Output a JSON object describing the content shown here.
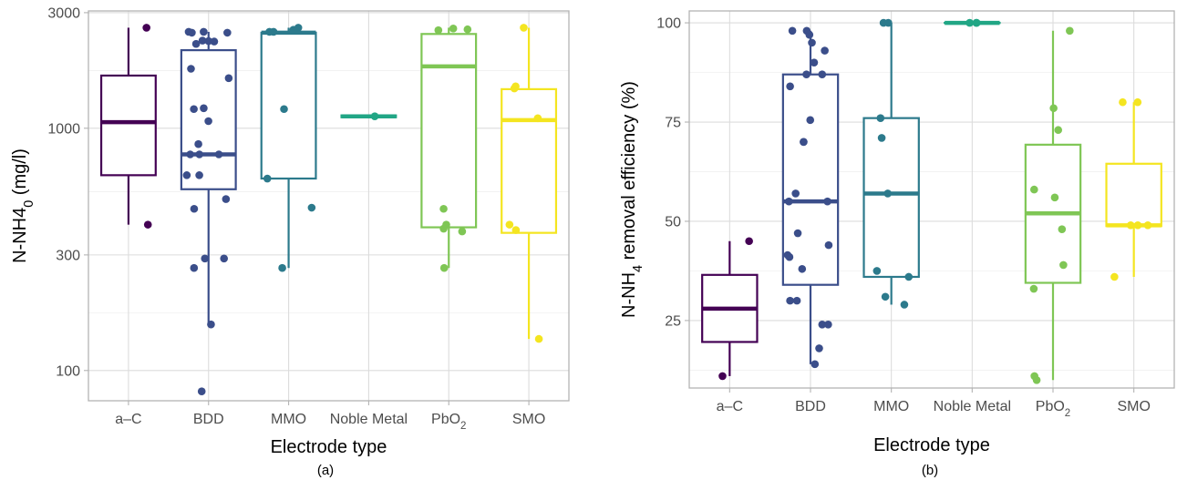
{
  "chart_data": [
    {
      "type": "box",
      "panel_label": "(a)",
      "xlabel": "Electrode type",
      "ylabel": "N-NH4₀ (mg/l)",
      "y_scale": "log",
      "ylim": [
        75,
        3050
      ],
      "yticks": [
        100,
        300,
        1000,
        3000
      ],
      "ytick_labels": [
        "100",
        "300",
        "1000",
        "3000"
      ],
      "categories": [
        "a–C",
        "BDD",
        "MMO",
        "Noble Metal",
        "PbO₂",
        "SMO"
      ],
      "colors": [
        "#440154",
        "#3b4e8a",
        "#2c7a8c",
        "#21a685",
        "#7fc655",
        "#f4e520"
      ],
      "boxes": [
        {
          "category": "a–C",
          "q1": 640,
          "median": 1060,
          "q3": 1650,
          "whisker_low": 400,
          "whisker_high": 2600
        },
        {
          "category": "BDD",
          "q1": 560,
          "median": 780,
          "q3": 2100,
          "whisker_low": 155,
          "whisker_high": 2500
        },
        {
          "category": "MMO",
          "q1": 620,
          "median": 2480,
          "q3": 2480,
          "whisker_low": 265,
          "whisker_high": 2600
        },
        {
          "category": "Noble Metal",
          "q1": 1110,
          "median": 1120,
          "q3": 1130,
          "whisker_low": 1110,
          "whisker_high": 1130
        },
        {
          "category": "PbO₂",
          "q1": 390,
          "median": 1800,
          "q3": 2450,
          "whisker_low": 265,
          "whisker_high": 2600
        },
        {
          "category": "SMO",
          "q1": 370,
          "median": 1080,
          "q3": 1450,
          "whisker_low": 135,
          "whisker_high": 2600
        }
      ],
      "points": [
        {
          "category": "a–C",
          "values": [
            2600,
            400
          ]
        },
        {
          "category": "BDD",
          "values": [
            2500,
            2500,
            2480,
            2480,
            2300,
            2290,
            2280,
            2230,
            1760,
            1610,
            1210,
            1200,
            1070,
            860,
            780,
            780,
            780,
            640,
            640,
            510,
            465,
            290,
            290,
            265,
            155,
            82
          ]
        },
        {
          "category": "MMO",
          "values": [
            2600,
            2550,
            2500,
            2500,
            1200,
            620,
            470,
            265
          ]
        },
        {
          "category": "Noble Metal",
          "values": [
            1120
          ]
        },
        {
          "category": "PbO₂",
          "values": [
            2580,
            2560,
            2540,
            465,
            400,
            385,
            375,
            265
          ]
        },
        {
          "category": "SMO",
          "values": [
            2600,
            1490,
            1460,
            1100,
            400,
            380,
            135
          ]
        }
      ]
    },
    {
      "type": "box",
      "panel_label": "(b)",
      "xlabel": "Electrode type",
      "ylabel": "N-NH₄ removal efficiency (%)",
      "ylim": [
        8,
        103
      ],
      "yticks": [
        25,
        50,
        75,
        100
      ],
      "ytick_labels": [
        "25",
        "50",
        "75",
        "100"
      ],
      "categories": [
        "a–C",
        "BDD",
        "MMO",
        "Noble Metal",
        "PbO₂",
        "SMO"
      ],
      "colors": [
        "#440154",
        "#3b4e8a",
        "#2c7a8c",
        "#21a685",
        "#7fc655",
        "#f4e520"
      ],
      "boxes": [
        {
          "category": "a–C",
          "q1": 19.6,
          "median": 28,
          "q3": 36.5,
          "whisker_low": 11,
          "whisker_high": 45
        },
        {
          "category": "BDD",
          "q1": 34,
          "median": 55,
          "q3": 87,
          "whisker_low": 14,
          "whisker_high": 98
        },
        {
          "category": "MMO",
          "q1": 36,
          "median": 57,
          "q3": 76,
          "whisker_low": 29,
          "whisker_high": 100
        },
        {
          "category": "Noble Metal",
          "q1": 100,
          "median": 100,
          "q3": 100,
          "whisker_low": 100,
          "whisker_high": 100
        },
        {
          "category": "PbO₂",
          "q1": 34.5,
          "median": 52,
          "q3": 69.3,
          "whisker_low": 10,
          "whisker_high": 98
        },
        {
          "category": "SMO",
          "q1": 48.8,
          "median": 49,
          "q3": 64.5,
          "whisker_low": 36,
          "whisker_high": 80
        }
      ],
      "points": [
        {
          "category": "a–C",
          "values": [
            45,
            11
          ]
        },
        {
          "category": "BDD",
          "values": [
            98,
            98,
            97,
            95,
            93,
            90,
            87,
            87,
            84,
            75.5,
            70,
            70,
            57,
            55,
            55,
            47,
            44,
            41.5,
            41,
            38,
            30,
            30,
            24,
            24,
            18,
            14
          ]
        },
        {
          "category": "MMO",
          "values": [
            100,
            100,
            76,
            71,
            57,
            37.5,
            36,
            31,
            29
          ]
        },
        {
          "category": "Noble Metal",
          "values": [
            100,
            100,
            100
          ]
        },
        {
          "category": "PbO₂",
          "values": [
            98,
            78.5,
            73,
            58,
            56,
            48,
            39,
            33,
            11,
            10
          ]
        },
        {
          "category": "SMO",
          "values": [
            80,
            80,
            49,
            49,
            49,
            36
          ]
        }
      ]
    }
  ]
}
